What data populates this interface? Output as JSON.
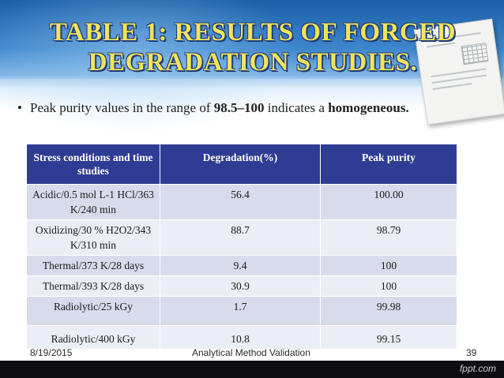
{
  "title": "TABLE 1: RESULTS OF FORCED DEGRADATION STUDIES.",
  "bullet": {
    "prefix": "Peak purity values in the range of ",
    "range": "98.5–100",
    "middle": " indicates a ",
    "emphasis": "homogeneous."
  },
  "table": {
    "headers": [
      "Stress conditions and time studies",
      "Degradation(%)",
      "Peak purity"
    ],
    "rows": [
      {
        "condition": "Acidic/0.5 mol L-1 HCl/363 K/240 min",
        "degradation": "56.4",
        "purity": "100.00"
      },
      {
        "condition": "Oxidizing/30 % H2O2/343 K/310 min",
        "degradation": "88.7",
        "purity": "98.79"
      },
      {
        "condition": "Thermal/373 K/28 days",
        "degradation": "9.4",
        "purity": "100"
      },
      {
        "condition": "Thermal/393 K/28 days",
        "degradation": "30.9",
        "purity": "100"
      },
      {
        "condition": "Radiolytic/25 kGy",
        "degradation": "1.7",
        "purity": "99.98"
      },
      {
        "condition": "Radiolytic/400 kGy",
        "degradation": "10.8",
        "purity": "99.15"
      }
    ]
  },
  "footer": {
    "date": "8/19/2015",
    "center": "Analytical Method Validation",
    "page": "39",
    "brand": "fppt.com"
  }
}
